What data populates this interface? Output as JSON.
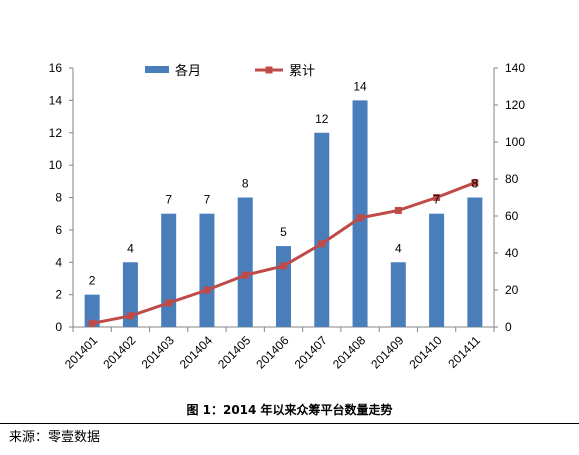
{
  "chart_data": {
    "type": "bar",
    "categories": [
      "201401",
      "201402",
      "201403",
      "201404",
      "201405",
      "201406",
      "201407",
      "201408",
      "201409",
      "201410",
      "201411"
    ],
    "series": [
      {
        "name": "各月",
        "type": "bar",
        "axis": "left",
        "color": "#4a7ebb",
        "values": [
          2,
          4,
          7,
          7,
          8,
          5,
          12,
          14,
          4,
          7,
          8
        ]
      },
      {
        "name": "累计",
        "type": "line",
        "axis": "right",
        "color": "#be4b48",
        "values": [
          2,
          6,
          13,
          20,
          28,
          33,
          45,
          59,
          63,
          70,
          78
        ]
      }
    ],
    "data_labels": [
      "2",
      "4",
      "7",
      "7",
      "8",
      "5",
      "12",
      "14",
      "4",
      "7",
      "8"
    ],
    "y_left": {
      "min": 0,
      "max": 16,
      "ticks": [
        0,
        2,
        4,
        6,
        8,
        10,
        12,
        14,
        16
      ]
    },
    "y_right": {
      "min": 0,
      "max": 140,
      "ticks": [
        0,
        20,
        40,
        60,
        80,
        100,
        120,
        140
      ]
    },
    "legend_position": "top",
    "grid": false
  },
  "caption": "图 1：2014 年以来众筹平台数量走势",
  "source": "来源：零壹数据"
}
